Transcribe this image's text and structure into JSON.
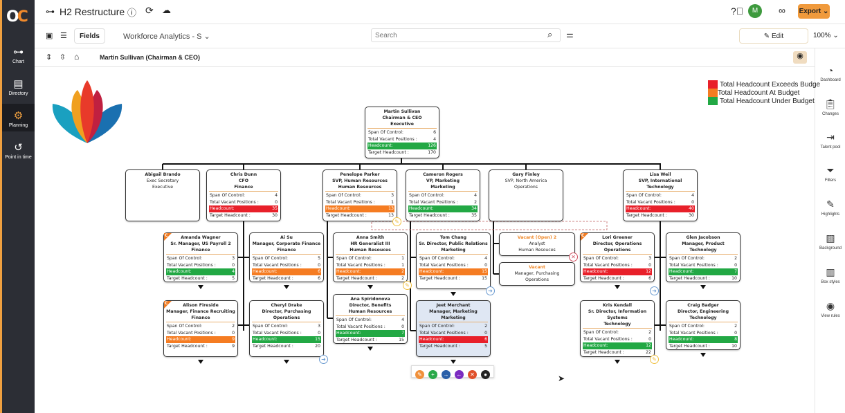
{
  "app": {
    "logo": "OC",
    "title": "H2 Restructure",
    "avatar": "M",
    "export_label": "Export"
  },
  "nav": [
    {
      "label": "Chart",
      "icon": "org-chart-icon"
    },
    {
      "label": "Directory",
      "icon": "directory-icon"
    },
    {
      "label": "Planning",
      "icon": "planning-icon",
      "active": true
    },
    {
      "label": "Point in time",
      "icon": "history-icon"
    }
  ],
  "toolbar": {
    "fields_label": "Fields",
    "view_select": "Workforce Analytics - S",
    "search_placeholder": "Search",
    "edit_label": "Edit",
    "zoom": "100%"
  },
  "breadcrumb": "Martin Sullivan (Chairman & CEO)",
  "right_nav": [
    {
      "label": "Dashboard"
    },
    {
      "label": "Changes"
    },
    {
      "label": "Talent pool"
    },
    {
      "label": "Filters"
    },
    {
      "label": "Highlights"
    },
    {
      "label": "Background"
    },
    {
      "label": "Box styles"
    },
    {
      "label": "View rules"
    }
  ],
  "legend": [
    {
      "label": "Total Headcount Exceeds Budge",
      "color": "#e8202a"
    },
    {
      "label": "Total Headcount At Budget",
      "color": "#f57c22"
    },
    {
      "label": "Total Headcount Under Budget",
      "color": "#22a844"
    }
  ],
  "field_labels": {
    "span": "Span Of Control:",
    "vacant": "Total Vacant Positions :",
    "headcount": "Headcount:",
    "target": "Target Headcount :"
  },
  "status_colors": {
    "over": "#e8202a",
    "at": "#f57c22",
    "under": "#22a844"
  },
  "nodes": [
    {
      "name": "Martin Sullivan",
      "title": "Chairman & CEO",
      "dept": "Executive",
      "span": 6,
      "vacant": 4,
      "headcount": 126,
      "target": 170,
      "status": "under"
    },
    {
      "name": "Abigail Brando",
      "title": "Exec Secretary",
      "dept": "Executive",
      "plain": true
    },
    {
      "name": "Chris  Dunn",
      "title": "CFO",
      "dept": "Finance",
      "span": 4,
      "vacant": 0,
      "headcount": 35,
      "target": 30,
      "status": "over"
    },
    {
      "name": "Penelope Parker",
      "title": "SVP, Human Resources",
      "dept": "Human Resources",
      "span": 3,
      "vacant": 1,
      "headcount": 13,
      "target": 13,
      "status": "at"
    },
    {
      "name": "Cameron Rogers",
      "title": "VP, Marketing",
      "dept": "Marketing",
      "span": 4,
      "vacant": 2,
      "headcount": 34,
      "target": 35,
      "status": "under"
    },
    {
      "name": "Gary Finley",
      "title": "SVP, North America",
      "dept": "Operations",
      "plain": true
    },
    {
      "name": "Lisa Weil",
      "title": "SVP, International",
      "dept": "Technology",
      "span": 4,
      "vacant": 0,
      "headcount": 40,
      "target": 30,
      "status": "over"
    },
    {
      "name": "Amanda Wagner",
      "title": "Sr. Manager, US Payroll 2",
      "dept": "Finance",
      "span": 3,
      "vacant": 0,
      "headcount": 4,
      "target": 5,
      "status": "under",
      "corner": "C"
    },
    {
      "name": "Ai Su",
      "title": "Manager, Corporate Finance",
      "dept": "Finance",
      "span": 5,
      "vacant": 0,
      "headcount": 6,
      "target": 6,
      "status": "at"
    },
    {
      "name": "Anna Smith",
      "title": "HR Generalist III",
      "dept": "Human Resouces",
      "span": 1,
      "vacant": 1,
      "headcount": 2,
      "target": 2,
      "status": "at"
    },
    {
      "name": "Tom Chang",
      "title": "Sr. Director, Public Relations",
      "dept": "Marketing",
      "span": 4,
      "vacant": 0,
      "headcount": 15,
      "target": 15,
      "status": "at"
    },
    {
      "name": "Vacant (Open) 2",
      "title": "Analyst",
      "dept": "Human Resouces",
      "vacancy": true
    },
    {
      "name": "Vacant",
      "title": "Manager, Purchasing",
      "dept": "Operations",
      "vacancy": true
    },
    {
      "name": "Lori Greener",
      "title": "Director, Operations",
      "dept": "Operations",
      "span": 3,
      "vacant": 0,
      "headcount": 12,
      "target": 6,
      "status": "over",
      "corner": "C"
    },
    {
      "name": "Glen Jacobson",
      "title": "Manager, Product",
      "dept": "Technology",
      "span": 2,
      "vacant": 0,
      "headcount": 7,
      "target": 10,
      "status": "under"
    },
    {
      "name": "Alison Fireside",
      "title": "Manager, Finance Recruiting",
      "dept": "Finance",
      "span": 2,
      "vacant": 0,
      "headcount": 9,
      "target": 9,
      "status": "at",
      "corner": "C"
    },
    {
      "name": "Cheryl Drake",
      "title": "Director, Purchasing",
      "dept": "Operations",
      "span": 3,
      "vacant": 0,
      "headcount": 15,
      "target": 20,
      "status": "under"
    },
    {
      "name": "Ana Spiridonova",
      "title": "Director, Benefits",
      "dept": "Human Resources",
      "span": 4,
      "vacant": 0,
      "headcount": 7,
      "target": 15,
      "status": "under"
    },
    {
      "name": "Jeet Merchant",
      "title": "Manager, Marketing",
      "dept": "Marketing",
      "span": 2,
      "vacant": 0,
      "headcount": 6,
      "target": 5,
      "status": "over",
      "selected": true
    },
    {
      "name": "Kris Kendall",
      "title": "Sr. Director, Information Systems",
      "dept": "Technology",
      "span": 2,
      "vacant": 0,
      "headcount": 12,
      "target": 22,
      "status": "under"
    },
    {
      "name": "Craig Badger",
      "title": "Director, Engineering",
      "dept": "Technology",
      "span": 2,
      "vacant": 0,
      "headcount": 8,
      "target": 10,
      "status": "under"
    }
  ],
  "node_actions": [
    {
      "icon": "edit-icon",
      "color": "#f0903a"
    },
    {
      "icon": "add-icon",
      "color": "#2aa84a"
    },
    {
      "icon": "move-right-icon",
      "color": "#2a5fa8"
    },
    {
      "icon": "move-left-icon",
      "color": "#7a2ac0"
    },
    {
      "icon": "delete-icon",
      "color": "#e0502a"
    },
    {
      "icon": "comment-icon",
      "color": "#222"
    }
  ]
}
